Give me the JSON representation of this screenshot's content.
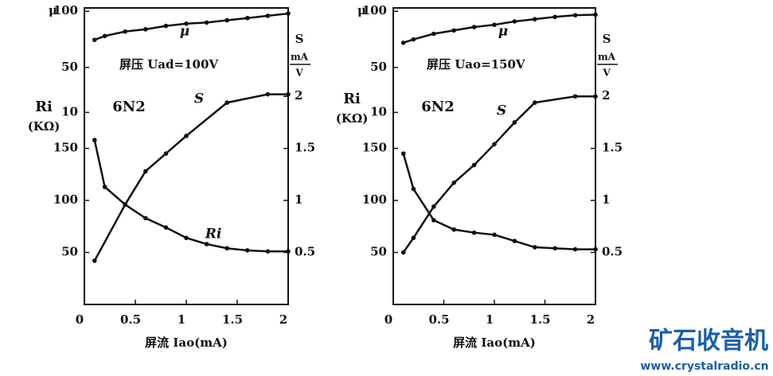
{
  "chart_data": [
    {
      "type": "line",
      "title": "6N2",
      "annotation": "屏压 Uad=100V",
      "xlabel": "屏流 Iao(mA)",
      "ylabel": "Ri",
      "yunit": "(KΩ)",
      "y2label": "S",
      "y2unit_num": "mA",
      "y2unit_den": "V",
      "y3label": "μ",
      "xlim": [
        0,
        2
      ],
      "xticks": [
        0,
        0.5,
        1,
        1.5,
        2
      ],
      "ylim": [
        0,
        285
      ],
      "yticks": [
        50,
        100,
        150
      ],
      "y2lim": [
        0,
        2.85
      ],
      "y2ticks": [
        0.5,
        1,
        1.5,
        2
      ],
      "y3lim": [
        -161,
        103
      ],
      "y3ticks": [
        10,
        50,
        100
      ],
      "series": [
        {
          "name": "μ",
          "axis": "y3",
          "color": "#111",
          "x": [
            0.1,
            0.2,
            0.4,
            0.6,
            0.8,
            1.0,
            1.2,
            1.4,
            1.6,
            1.8,
            2.0
          ],
          "values": [
            74.6,
            78,
            82,
            84,
            87,
            89,
            90,
            92,
            94,
            96,
            98
          ]
        },
        {
          "name": "Ri",
          "axis": "y",
          "color": "#111",
          "x": [
            0.1,
            0.2,
            0.4,
            0.6,
            0.8,
            1.0,
            1.2,
            1.4,
            1.6,
            1.8,
            2.0
          ],
          "values": [
            158,
            113,
            96,
            83,
            74,
            64,
            58,
            54,
            52,
            51,
            51
          ]
        },
        {
          "name": "S",
          "axis": "y2",
          "color": "#111",
          "x": [
            0.1,
            0.4,
            0.6,
            0.8,
            1.0,
            1.4,
            1.8,
            2.0
          ],
          "values": [
            0.42,
            0.96,
            1.28,
            1.45,
            1.62,
            1.94,
            2.02,
            2.02
          ]
        }
      ]
    },
    {
      "type": "line",
      "title": "6N2",
      "annotation": "屏压 Uao=150V",
      "xlabel": "屏流 Iao(mA)",
      "ylabel": "Ri",
      "yunit": "(KΩ)",
      "y2label": "S",
      "y2unit_num": "mA",
      "y2unit_den": "V",
      "y3label": "μ",
      "xlim": [
        0,
        2
      ],
      "xticks": [
        0,
        0.5,
        1,
        1.5,
        2
      ],
      "ylim": [
        0,
        285
      ],
      "yticks": [
        50,
        100,
        150
      ],
      "y2lim": [
        0,
        2.85
      ],
      "y2ticks": [
        0.5,
        1,
        1.5,
        2
      ],
      "y3lim": [
        -161,
        103
      ],
      "y3ticks": [
        10,
        50,
        100
      ],
      "series": [
        {
          "name": "μ",
          "axis": "y3",
          "color": "#111",
          "x": [
            0.1,
            0.2,
            0.4,
            0.6,
            0.8,
            1.0,
            1.2,
            1.4,
            1.6,
            1.8,
            2.0
          ],
          "values": [
            72,
            75,
            80,
            83,
            86,
            88,
            91,
            93,
            95,
            96.5,
            97
          ]
        },
        {
          "axis": "y",
          "color": "#111",
          "x": [
            0.1,
            0.2,
            0.4,
            0.6,
            0.8,
            1.0,
            1.2,
            1.4,
            1.6,
            1.8,
            2.0
          ],
          "values": [
            145,
            111,
            81,
            72,
            69,
            67,
            61,
            55,
            54,
            53,
            53
          ]
        },
        {
          "name": "S",
          "axis": "y2",
          "color": "#111",
          "x": [
            0.1,
            0.2,
            0.4,
            0.6,
            0.8,
            1.0,
            1.2,
            1.4,
            1.8,
            2.0
          ],
          "values": [
            0.5,
            0.64,
            0.94,
            1.17,
            1.34,
            1.54,
            1.75,
            1.94,
            2.0,
            2.0
          ]
        }
      ]
    }
  ],
  "watermark": {
    "brand": "矿石收音机",
    "url": "www.crystalradio.cn"
  }
}
